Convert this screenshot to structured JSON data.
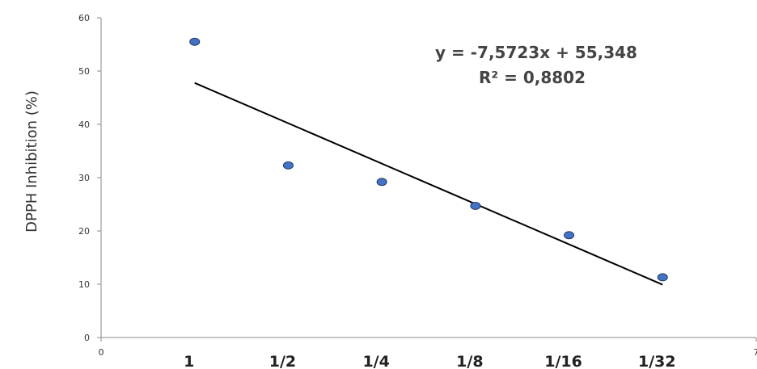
{
  "chart_data": {
    "type": "scatter",
    "ylabel": "DPPH Inhibition (%)",
    "xlim": [
      0,
      7
    ],
    "ylim": [
      0,
      60
    ],
    "x_ticks": [
      "0",
      "7"
    ],
    "y_ticks": [
      "0",
      "10",
      "20",
      "30",
      "40",
      "50",
      "60"
    ],
    "categories": [
      "1",
      "1/2",
      "1/4",
      "1/8",
      "1/16",
      "1/32"
    ],
    "x": [
      1,
      2,
      3,
      4,
      5,
      6
    ],
    "values": [
      55.5,
      32.3,
      29.2,
      24.7,
      19.2,
      11.3
    ],
    "trendline": {
      "slope": -7.5723,
      "intercept": 55.348,
      "equation": "y = -7,5723x + 55,348",
      "r2": "R² = 0,8802"
    },
    "grid": false,
    "point_color": "#4472C4",
    "point_stroke": "#1F3864",
    "line_color": "#000000"
  }
}
